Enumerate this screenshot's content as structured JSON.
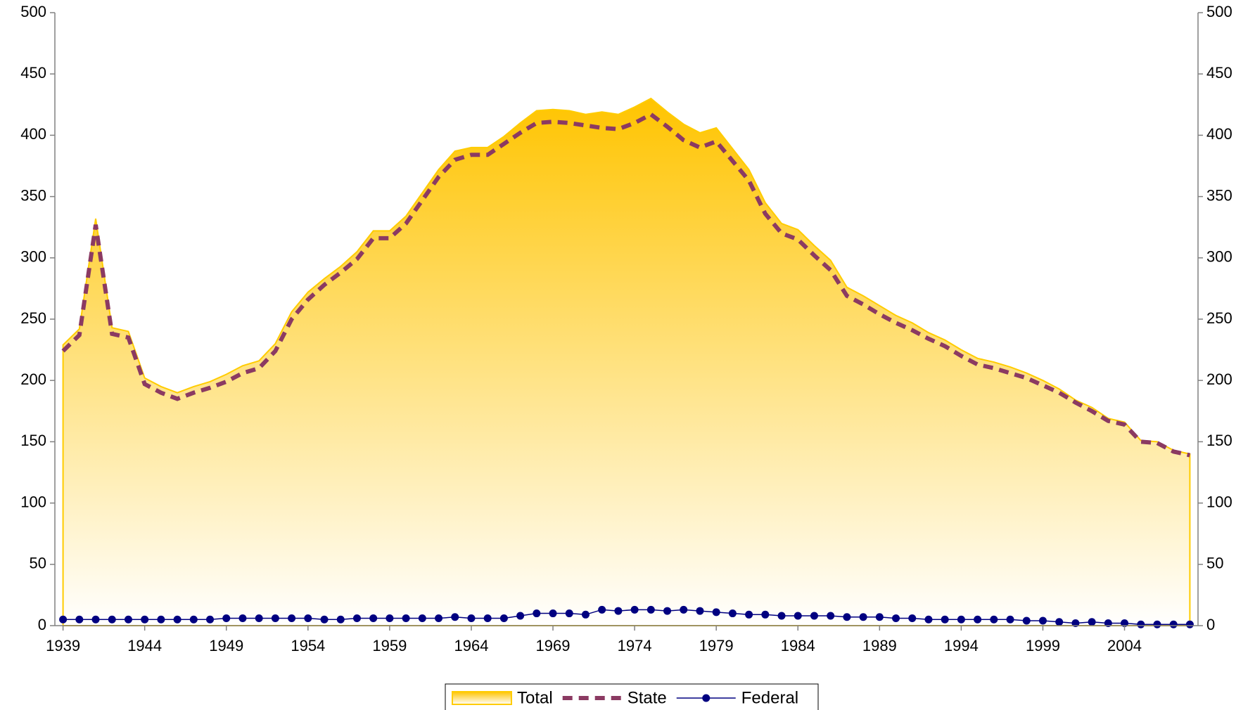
{
  "chart_data": {
    "type": "line",
    "x": [
      1939,
      1940,
      1941,
      1942,
      1943,
      1944,
      1945,
      1946,
      1947,
      1948,
      1949,
      1950,
      1951,
      1952,
      1953,
      1954,
      1955,
      1956,
      1957,
      1958,
      1959,
      1960,
      1961,
      1962,
      1963,
      1964,
      1965,
      1966,
      1967,
      1968,
      1969,
      1970,
      1971,
      1972,
      1973,
      1974,
      1975,
      1976,
      1977,
      1978,
      1979,
      1980,
      1981,
      1982,
      1983,
      1984,
      1985,
      1986,
      1987,
      1988,
      1989,
      1990,
      1991,
      1992,
      1993,
      1994,
      1995,
      1996,
      1997,
      1998,
      1999,
      2000,
      2001,
      2002,
      2003,
      2004,
      2005,
      2006,
      2007,
      2008
    ],
    "xlim": [
      1938.5,
      2008.5
    ],
    "xticks": [
      1939,
      1944,
      1949,
      1954,
      1959,
      1964,
      1969,
      1974,
      1979,
      1984,
      1989,
      1994,
      1999,
      2004
    ],
    "ylim": [
      0,
      500
    ],
    "yticks": [
      0,
      50,
      100,
      150,
      200,
      250,
      300,
      350,
      400,
      450,
      500
    ],
    "y2lim": [
      0,
      500
    ],
    "y2ticks": [
      0,
      50,
      100,
      150,
      200,
      250,
      300,
      350,
      400,
      450,
      500
    ],
    "legend": "bottom",
    "series": [
      {
        "name": "Total",
        "kind": "area",
        "color": "#ffcc00",
        "values": [
          229,
          242,
          332,
          243,
          240,
          202,
          195,
          190,
          195,
          199,
          205,
          212,
          216,
          230,
          256,
          272,
          283,
          293,
          305,
          322,
          322,
          334,
          353,
          372,
          387,
          390,
          390,
          399,
          410,
          420,
          421,
          420,
          417,
          419,
          417,
          423,
          430,
          419,
          409,
          402,
          406,
          389,
          372,
          345,
          328,
          323,
          310,
          298,
          276,
          269,
          261,
          253,
          247,
          239,
          233,
          225,
          218,
          215,
          211,
          206,
          200,
          193,
          184,
          178,
          169,
          166,
          151,
          150,
          143,
          140
        ]
      },
      {
        "name": "State",
        "kind": "dashed",
        "color": "#8b3a62",
        "values": [
          224,
          237,
          327,
          238,
          235,
          197,
          190,
          185,
          190,
          194,
          199,
          206,
          210,
          224,
          250,
          266,
          278,
          288,
          299,
          316,
          316,
          328,
          347,
          366,
          380,
          384,
          384,
          393,
          402,
          410,
          411,
          410,
          408,
          406,
          405,
          410,
          417,
          407,
          396,
          390,
          395,
          379,
          363,
          336,
          320,
          315,
          302,
          290,
          269,
          262,
          254,
          247,
          241,
          234,
          228,
          220,
          213,
          210,
          206,
          202,
          196,
          190,
          182,
          175,
          167,
          164,
          150,
          149,
          142,
          139
        ]
      },
      {
        "name": "Federal",
        "kind": "markers",
        "color": "#000080",
        "values": [
          5,
          5,
          5,
          5,
          5,
          5,
          5,
          5,
          5,
          5,
          6,
          6,
          6,
          6,
          6,
          6,
          5,
          5,
          6,
          6,
          6,
          6,
          6,
          6,
          7,
          6,
          6,
          6,
          8,
          10,
          10,
          10,
          9,
          13,
          12,
          13,
          13,
          12,
          13,
          12,
          11,
          10,
          9,
          9,
          8,
          8,
          8,
          8,
          7,
          7,
          7,
          6,
          6,
          5,
          5,
          5,
          5,
          5,
          5,
          4,
          4,
          3,
          2,
          3,
          2,
          2,
          1,
          1,
          1,
          1
        ]
      }
    ]
  }
}
